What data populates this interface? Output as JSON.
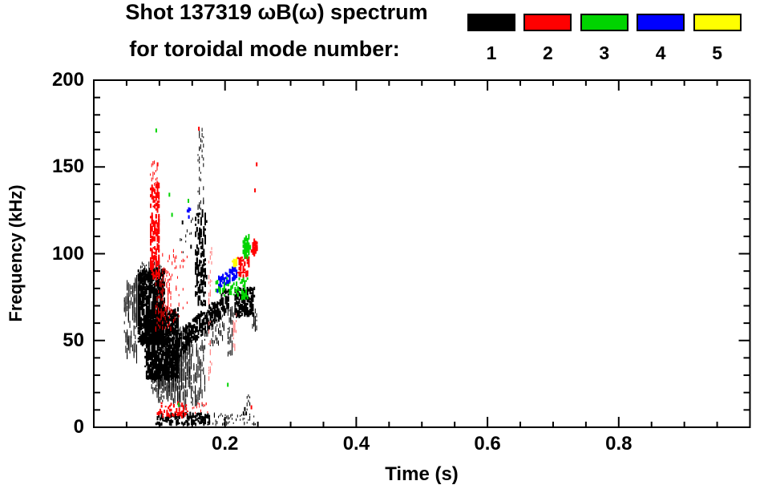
{
  "title": {
    "line1": "Shot 137319 ωB(ω) spectrum",
    "line2": "for toroidal mode number:"
  },
  "legend": {
    "items": [
      {
        "label": "1",
        "color": "#000000"
      },
      {
        "label": "2",
        "color": "#ff0000"
      },
      {
        "label": "3",
        "color": "#00d400"
      },
      {
        "label": "4",
        "color": "#0000ff"
      },
      {
        "label": "5",
        "color": "#ffff00"
      }
    ]
  },
  "axes": {
    "x": {
      "label": "Time (s)",
      "min": 0,
      "max": 1.0,
      "major_ticks": [
        0.2,
        0.4,
        0.6,
        0.8
      ],
      "major_labels": [
        "0.2",
        "0.4",
        "0.6",
        "0.8"
      ],
      "minor_step": 0.05
    },
    "y": {
      "label": "Frequency (kHz)",
      "min": 0,
      "max": 200,
      "major_ticks": [
        0,
        50,
        100,
        150,
        200
      ],
      "major_labels": [
        "0",
        "50",
        "100",
        "150",
        "200"
      ],
      "minor_step": 10
    }
  },
  "chart_data": {
    "type": "scatter",
    "title": "Shot 137319 ωB(ω) spectrum for toroidal mode number",
    "xlabel": "Time (s)",
    "ylabel": "Frequency (kHz)",
    "xlim": [
      0,
      1.0
    ],
    "ylim": [
      0,
      200
    ],
    "grid": false,
    "legend_position": "top-right",
    "units": "clusters: t in seconds [min,max], f in kHz [min,max], n = approx point count; points: [t, f]",
    "series": [
      {
        "name": "mode 1",
        "color": "#000000",
        "clusters": [
          {
            "t": [
              0.045,
              0.066
            ],
            "f": [
              40,
              82
            ],
            "n": 70,
            "dash": [
              3,
              16
            ],
            "w": 1
          },
          {
            "t": [
              0.058,
              0.07
            ],
            "f": [
              60,
              85
            ],
            "n": 60,
            "dash": [
              3,
              14
            ],
            "w": 1
          },
          {
            "t": [
              0.066,
              0.106
            ],
            "f": [
              48,
              91
            ],
            "n": 750,
            "dash": [
              2,
              8
            ],
            "w": 2
          },
          {
            "t": [
              0.07,
              0.102
            ],
            "f": [
              84,
              95
            ],
            "n": 120,
            "dash": [
              2,
              5
            ],
            "w": 1
          },
          {
            "t": [
              0.078,
              0.128
            ],
            "f": [
              28,
              68
            ],
            "n": 800,
            "dash": [
              2,
              8
            ],
            "w": 2
          },
          {
            "t": [
              0.088,
              0.118
            ],
            "f": [
              20,
              34
            ],
            "n": 180,
            "dash": [
              2,
              6
            ],
            "w": 1
          },
          {
            "t": [
              0.095,
              0.13
            ],
            "f": [
              15,
              28
            ],
            "n": 80,
            "dash": [
              2,
              9
            ],
            "w": 1
          },
          {
            "t": [
              0.104,
              0.148
            ],
            "f": [
              22,
              58
            ],
            "n": 300,
            "dash": [
              2,
              10
            ],
            "w": 1
          },
          {
            "t": [
              0.128,
              0.168
            ],
            "f": [
              12,
              48
            ],
            "n": 160,
            "dash": [
              2,
              12
            ],
            "w": 1
          },
          {
            "t": [
              0.118,
              0.205
            ],
            "fpath": [
              44,
              74
            ],
            "hw": 7,
            "n": 300,
            "dash": [
              2,
              7
            ],
            "w": 2
          },
          {
            "t": [
              0.153,
              0.17
            ],
            "f": [
              70,
              124
            ],
            "n": 140,
            "dash": [
              2,
              8
            ],
            "w": 2
          },
          {
            "t": [
              0.158,
              0.167
            ],
            "f": [
              124,
              172
            ],
            "n": 40,
            "dash": [
              2,
              6
            ],
            "w": 1
          },
          {
            "t": [
              0.168,
              0.198
            ],
            "f": [
              48,
              66
            ],
            "n": 60,
            "dash": [
              2,
              8
            ],
            "w": 1
          },
          {
            "t": [
              0.13,
              0.15
            ],
            "f": [
              100,
              120
            ],
            "n": 12,
            "dash": [
              2,
              4
            ],
            "w": 1
          },
          {
            "t": [
              0.203,
              0.212
            ],
            "f": [
              42,
              70
            ],
            "n": 40,
            "dash": [
              2,
              9
            ],
            "w": 1
          },
          {
            "t": [
              0.214,
              0.243
            ],
            "f": [
              64,
              80
            ],
            "n": 170,
            "dash": [
              2,
              7
            ],
            "w": 2
          },
          {
            "t": [
              0.242,
              0.247
            ],
            "f": [
              56,
              68
            ],
            "n": 22,
            "dash": [
              2,
              8
            ],
            "w": 1
          },
          {
            "t": [
              0.092,
              0.175
            ],
            "f": [
              1.5,
              8
            ],
            "n": 150,
            "dash": [
              2,
              5
            ],
            "w": 2
          },
          {
            "t": [
              0.18,
              0.25
            ],
            "f": [
              1.5,
              8
            ],
            "n": 55,
            "dash": [
              2,
              4
            ],
            "w": 1
          },
          {
            "t": [
              0.232,
              0.238
            ],
            "f": [
              10,
              19
            ],
            "n": 10,
            "dash": [
              2,
              5
            ],
            "w": 1
          }
        ],
        "points": [
          [
            0.134,
            118
          ],
          [
            0.147,
            104
          ],
          [
            0.227,
            8
          ],
          [
            0.229,
            10.5
          ],
          [
            0.231,
            8
          ]
        ]
      },
      {
        "name": "mode 2",
        "color": "#ff0000",
        "clusters": [
          {
            "t": [
              0.085,
              0.099
            ],
            "f": [
              86,
              140
            ],
            "n": 180,
            "dash": [
              2,
              7
            ],
            "w": 2
          },
          {
            "t": [
              0.086,
              0.097
            ],
            "f": [
              140,
              153
            ],
            "n": 22,
            "dash": [
              2,
              5
            ],
            "w": 1
          },
          {
            "t": [
              0.093,
              0.118
            ],
            "f": [
              56,
              92
            ],
            "n": 100,
            "dash": [
              2,
              6
            ],
            "w": 1
          },
          {
            "t": [
              0.1,
              0.142
            ],
            "f": [
              60,
              102
            ],
            "n": 55,
            "dash": [
              2,
              5
            ],
            "w": 1
          },
          {
            "t": [
              0.174,
              0.179
            ],
            "f": [
              28,
              104
            ],
            "n": 40,
            "dash": [
              2,
              6
            ],
            "w": 1,
            "shade": "#ff7070"
          },
          {
            "t": [
              0.211,
              0.217
            ],
            "f": [
              45,
              67
            ],
            "n": 22,
            "dash": [
              2,
              6
            ],
            "w": 1,
            "shade": "#ff7070"
          },
          {
            "t": [
              0.219,
              0.236
            ],
            "f": [
              86,
              98
            ],
            "n": 55,
            "dash": [
              2,
              6
            ],
            "w": 2
          },
          {
            "t": [
              0.239,
              0.249
            ],
            "f": [
              99,
              108
            ],
            "n": 45,
            "dash": [
              2,
              6
            ],
            "w": 2,
            "gauss": true
          },
          {
            "t": [
              0.096,
              0.142
            ],
            "f": [
              6,
              14
            ],
            "n": 55,
            "dash": [
              2,
              5
            ],
            "w": 2
          },
          {
            "t": [
              0.148,
              0.172
            ],
            "f": [
              8,
              14
            ],
            "n": 14,
            "dash": [
              2,
              4
            ],
            "w": 1
          }
        ],
        "points": [
          [
            0.159,
            172
          ],
          [
            0.096,
            151.5
          ],
          [
            0.247,
            151.5
          ],
          [
            0.2445,
            136.5
          ],
          [
            0.239,
            11.5
          ]
        ]
      },
      {
        "name": "mode 3",
        "color": "#00d400",
        "clusters": [
          {
            "t": [
              0.185,
              0.222
            ],
            "f": [
              76,
              86
            ],
            "n": 50,
            "dash": [
              2,
              6
            ],
            "w": 2
          },
          {
            "t": [
              0.225,
              0.237
            ],
            "f": [
              97,
              110
            ],
            "n": 60,
            "dash": [
              2,
              7
            ],
            "w": 2,
            "gauss": true
          },
          {
            "t": [
              0.224,
              0.233
            ],
            "f": [
              74,
              86
            ],
            "n": 30,
            "dash": [
              2,
              6
            ],
            "w": 2
          }
        ],
        "points": [
          [
            0.094,
            171
          ],
          [
            0.114,
            134
          ],
          [
            0.143,
            130.5
          ],
          [
            0.118,
            122.4
          ],
          [
            0.128,
            13
          ],
          [
            0.203,
            24.5
          ]
        ]
      },
      {
        "name": "mode 4",
        "color": "#0000ff",
        "clusters": [
          {
            "t": [
              0.1425,
              0.146
            ],
            "f": [
              121,
              126
            ],
            "n": 8,
            "dash": [
              2,
              5
            ],
            "w": 2
          },
          {
            "t": [
              0.188,
              0.217
            ],
            "fpath": [
              82,
              90
            ],
            "hw": 3.5,
            "n": 65,
            "dash": [
              2,
              6
            ],
            "w": 2
          }
        ],
        "points": []
      },
      {
        "name": "mode 5",
        "color": "#ffff00",
        "clusters": [
          {
            "t": [
              0.2095,
              0.2165
            ],
            "f": [
              92.5,
              97.5
            ],
            "n": 14,
            "dash": [
              2,
              6
            ],
            "w": 2
          }
        ],
        "points": []
      }
    ]
  }
}
